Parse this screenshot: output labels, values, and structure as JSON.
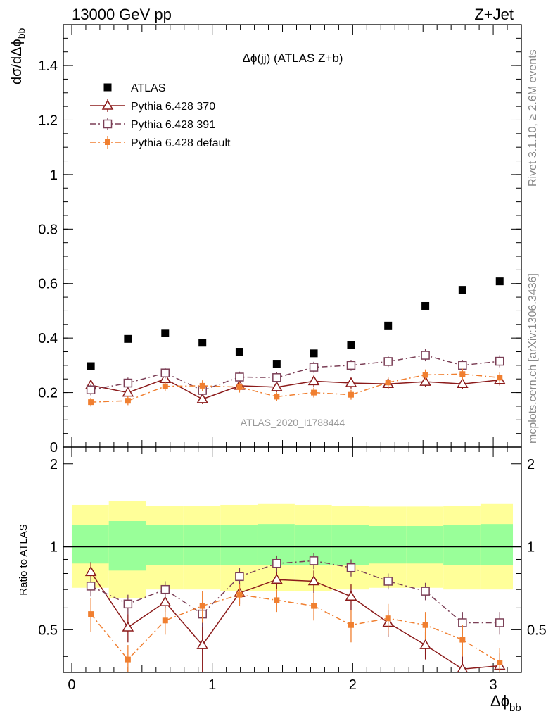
{
  "header": {
    "energy_label": "13000 GeV pp",
    "process_label": "Z+Jet"
  },
  "side": {
    "rivet_label": "Rivet 3.1.10, ≥ 2.6M events",
    "mcplots_label": "mcplots.cern.ch [arXiv:1306.3436]"
  },
  "chart_data": [
    {
      "type": "scatter",
      "title": "Δϕ(jj) (ATLAS Z+b)",
      "watermark": "ATLAS_2020_I1788444",
      "ylabel": "dσ/dΔϕ_bb",
      "xlim": [
        -0.06,
        3.2
      ],
      "ylim": [
        0,
        1.55
      ],
      "yticks": [
        "0",
        "0.2",
        "0.4",
        "0.6",
        "0.8",
        "1",
        "1.2",
        "1.4"
      ],
      "legend_position": "top-left",
      "x": [
        0.136,
        0.4,
        0.665,
        0.93,
        1.194,
        1.459,
        1.723,
        1.988,
        2.252,
        2.517,
        2.781,
        3.046
      ],
      "series": [
        {
          "name": "ATLAS",
          "color": "#000000",
          "marker": "square-filled",
          "line": "none",
          "values": [
            0.297,
            0.397,
            0.419,
            0.383,
            0.35,
            0.306,
            0.344,
            0.375,
            0.446,
            0.518,
            0.577,
            0.608
          ]
        },
        {
          "name": "Pythia 6.428 370",
          "color": "#8b1a1a",
          "marker": "triangle-open",
          "line": "solid",
          "values": [
            0.227,
            0.2,
            0.25,
            0.176,
            0.225,
            0.22,
            0.242,
            0.235,
            0.232,
            0.24,
            0.232,
            0.246
          ],
          "errors": [
            0.02,
            0.018,
            0.02,
            0.018,
            0.02,
            0.018,
            0.02,
            0.02,
            0.018,
            0.018,
            0.018,
            0.02
          ]
        },
        {
          "name": "Pythia 6.428 391",
          "color": "#7b3f56",
          "marker": "square-open",
          "line": "dashdot",
          "values": [
            0.21,
            0.235,
            0.272,
            0.208,
            0.257,
            0.255,
            0.293,
            0.3,
            0.314,
            0.337,
            0.3,
            0.315
          ],
          "errors": [
            0.02,
            0.02,
            0.02,
            0.02,
            0.02,
            0.02,
            0.02,
            0.02,
            0.02,
            0.022,
            0.02,
            0.022
          ]
        },
        {
          "name": "Pythia 6.428 default",
          "color": "#f07f30",
          "marker": "square-filled-small",
          "line": "dashdot",
          "values": [
            0.165,
            0.17,
            0.223,
            0.225,
            0.22,
            0.185,
            0.2,
            0.192,
            0.237,
            0.265,
            0.268,
            0.255
          ],
          "errors": [
            0.016,
            0.016,
            0.018,
            0.02,
            0.02,
            0.016,
            0.018,
            0.018,
            0.02,
            0.02,
            0.02,
            0.02
          ]
        }
      ]
    },
    {
      "type": "scatter",
      "ylabel": "Ratio to ATLAS",
      "xlabel": "Δϕ_bb",
      "xlim": [
        -0.06,
        3.2
      ],
      "ylim": [
        0.35,
        2.3
      ],
      "xticks": [
        "0",
        "1",
        "2",
        "3"
      ],
      "yticks": [
        "0.5",
        "1",
        "2"
      ],
      "reference_line": 1,
      "bin_edges": [
        0,
        0.264,
        0.529,
        0.793,
        1.058,
        1.322,
        1.587,
        1.851,
        2.116,
        2.38,
        2.645,
        2.909,
        3.14
      ],
      "band_yellow": {
        "lower": [
          0.71,
          0.65,
          0.7,
          0.7,
          0.69,
          0.69,
          0.69,
          0.7,
          0.71,
          0.71,
          0.7,
          0.7
        ],
        "upper": [
          1.42,
          1.47,
          1.41,
          1.41,
          1.42,
          1.43,
          1.42,
          1.41,
          1.4,
          1.4,
          1.41,
          1.43
        ]
      },
      "band_green": {
        "lower": [
          0.87,
          0.82,
          0.86,
          0.86,
          0.86,
          0.86,
          0.86,
          0.86,
          0.87,
          0.87,
          0.86,
          0.86
        ],
        "upper": [
          1.2,
          1.24,
          1.2,
          1.2,
          1.2,
          1.21,
          1.2,
          1.2,
          1.19,
          1.19,
          1.2,
          1.21
        ]
      },
      "x": [
        0.136,
        0.4,
        0.665,
        0.93,
        1.194,
        1.459,
        1.723,
        1.988,
        2.252,
        2.517,
        2.781,
        3.046
      ],
      "series": [
        {
          "name": "Pythia 6.428 370",
          "color": "#8b1a1a",
          "marker": "triangle-open",
          "line": "solid",
          "values": [
            0.81,
            0.51,
            0.63,
            0.44,
            0.68,
            0.76,
            0.75,
            0.66,
            0.53,
            0.44,
            0.36,
            0.37
          ],
          "errors": [
            0.07,
            0.06,
            0.05,
            0.09,
            0.06,
            0.06,
            0.07,
            0.07,
            0.06,
            0.05,
            0.04,
            0.04
          ]
        },
        {
          "name": "Pythia 6.428 391",
          "color": "#7b3f56",
          "marker": "square-open",
          "line": "dashdot",
          "values": [
            0.72,
            0.62,
            0.7,
            0.57,
            0.78,
            0.87,
            0.89,
            0.84,
            0.75,
            0.69,
            0.53,
            0.53
          ],
          "errors": [
            0.06,
            0.05,
            0.05,
            0.06,
            0.06,
            0.06,
            0.06,
            0.06,
            0.05,
            0.05,
            0.05,
            0.05
          ]
        },
        {
          "name": "Pythia 6.428 default",
          "color": "#f07f30",
          "marker": "square-filled-small",
          "line": "dashdot",
          "values": [
            0.57,
            0.39,
            0.54,
            0.61,
            0.67,
            0.64,
            0.61,
            0.52,
            0.55,
            0.52,
            0.46,
            0.38
          ],
          "errors": [
            0.08,
            0.05,
            0.06,
            0.08,
            0.06,
            0.06,
            0.07,
            0.07,
            0.07,
            0.06,
            0.06,
            0.05
          ]
        }
      ]
    }
  ]
}
